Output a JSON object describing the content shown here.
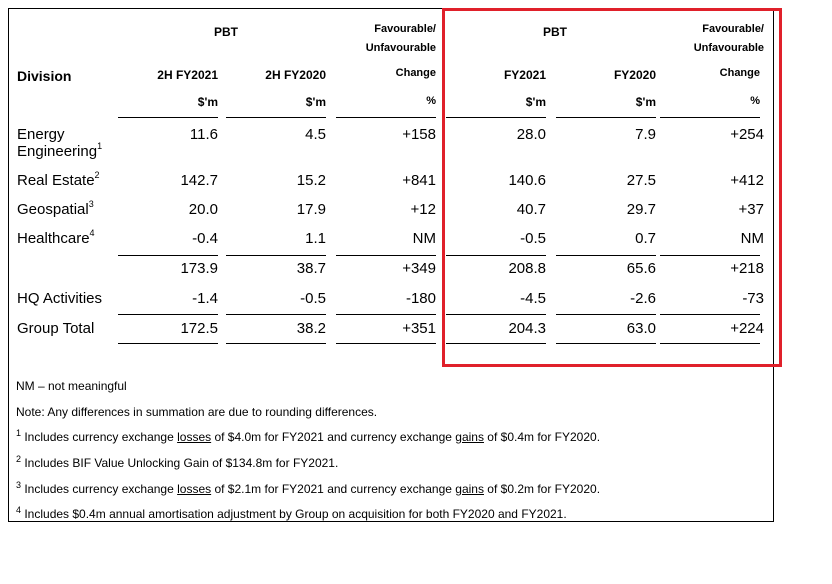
{
  "headers": {
    "pbt_left": "PBT",
    "fav_left_1": "Favourable/",
    "fav_left_2": "Unfavourable",
    "pbt_right": "PBT",
    "fav_right_1": "Favourable/",
    "fav_right_2": "Unfavourable",
    "division": "Division",
    "col1": "2H FY2021",
    "col2": "2H FY2020",
    "col3": "Change",
    "col4": "FY2021",
    "col5": "FY2020",
    "col6": "Change",
    "unit1": "$'m",
    "unit2": "$'m",
    "unit3": "%",
    "unit4": "$'m",
    "unit5": "$'m",
    "unit6": "%"
  },
  "rows": [
    {
      "label": "Energy",
      "label2": "Engineering",
      "sup": "1",
      "values": [
        "11.6",
        "4.5",
        "+158",
        "28.0",
        "7.9",
        "+254"
      ]
    },
    {
      "label": "Real Estate",
      "sup": "2",
      "values": [
        "142.7",
        "15.2",
        "+841",
        "140.6",
        "27.5",
        "+412"
      ]
    },
    {
      "label": "Geospatial",
      "sup": "3",
      "values": [
        "20.0",
        "17.9",
        "+12",
        "40.7",
        "29.7",
        "+37"
      ]
    },
    {
      "label": "Healthcare",
      "sup": "4",
      "values": [
        "-0.4",
        "1.1",
        "NM",
        "-0.5",
        "0.7",
        "NM"
      ]
    },
    {
      "label": "",
      "sup": "",
      "values": [
        "173.9",
        "38.7",
        "+349",
        "208.8",
        "65.6",
        "+218"
      ]
    },
    {
      "label": "HQ Activities",
      "sup": "",
      "values": [
        "-1.4",
        "-0.5",
        "-180",
        "-4.5",
        "-2.6",
        "-73"
      ]
    },
    {
      "label": "Group Total",
      "sup": "",
      "values": [
        "172.5",
        "38.2",
        "+351",
        "204.3",
        "63.0",
        "+224"
      ]
    }
  ],
  "notes": {
    "nm": "NM – not meaningful",
    "note": "Note: Any differences in summation are due to rounding differences.",
    "fn1": {
      "num": "1",
      "a": " Includes currency exchange ",
      "u1": "losses",
      "b": " of $4.0m for FY2021 and currency exchange ",
      "u2": "gains",
      "c": " of $0.4m for FY2020."
    },
    "fn2": {
      "num": "2",
      "text": " Includes BIF Value Unlocking Gain of $134.8m for FY2021."
    },
    "fn3": {
      "num": "3",
      "a": " Includes currency exchange ",
      "u1": "losses",
      "b": " of $2.1m for FY2021 and currency exchange ",
      "u2": "gains",
      "c": " of $0.2m for FY2020."
    },
    "fn4": {
      "num": "4",
      "text": " Includes $0.4m annual amortisation adjustment by Group on acquisition for both FY2020 and FY2021."
    }
  },
  "colors": {
    "highlight": "#e0202a",
    "text": "#000000"
  }
}
